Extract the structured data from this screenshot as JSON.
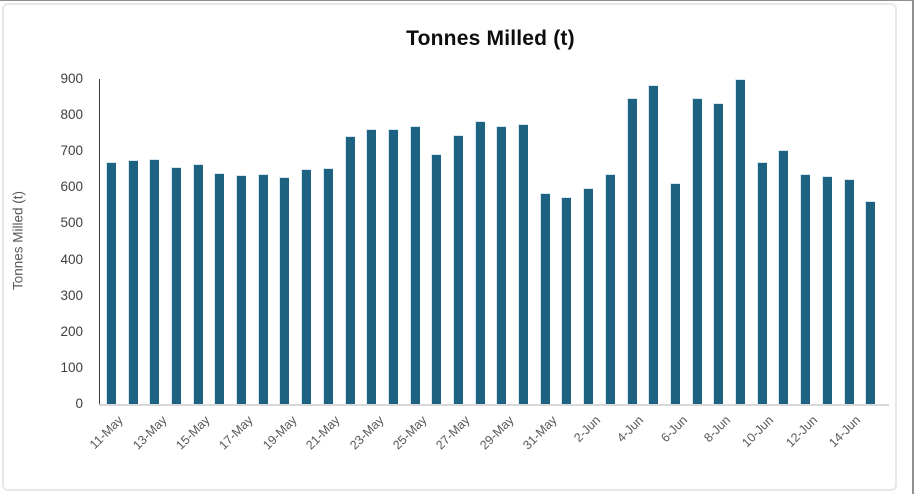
{
  "frame": {
    "background": "#ffffff",
    "inner_border_color": "#e7e7e7",
    "outer_edge_color": "#8f8f8f"
  },
  "chart_data": {
    "type": "bar",
    "title": "Tonnes Milled (t)",
    "ylabel": "Tonnes Milled (t)",
    "xlabel": "",
    "ylim": [
      0,
      900
    ],
    "yticks": [
      0,
      100,
      200,
      300,
      400,
      500,
      600,
      700,
      800,
      900
    ],
    "grid": false,
    "legend": false,
    "bar_color": "#1d6280",
    "axis_tick_color": "#404040",
    "axis_label_color": "#595959",
    "categories": [
      "11-May",
      "12-May",
      "13-May",
      "14-May",
      "15-May",
      "16-May",
      "17-May",
      "18-May",
      "19-May",
      "20-May",
      "21-May",
      "22-May",
      "23-May",
      "24-May",
      "25-May",
      "26-May",
      "27-May",
      "28-May",
      "29-May",
      "30-May",
      "31-May",
      "1-Jun",
      "2-Jun",
      "3-Jun",
      "4-Jun",
      "5-Jun",
      "6-Jun",
      "7-Jun",
      "8-Jun",
      "9-Jun",
      "10-Jun",
      "11-Jun",
      "12-Jun",
      "13-Jun",
      "14-Jun",
      "15-Jun"
    ],
    "values": [
      671,
      676,
      678,
      656,
      664,
      640,
      633,
      638,
      628,
      651,
      654,
      742,
      763,
      763,
      769,
      693,
      745,
      784,
      769,
      776,
      584,
      574,
      598,
      637,
      848,
      883,
      613,
      848,
      834,
      899,
      671,
      704,
      636,
      632,
      623,
      562
    ],
    "x_tick_labels": [
      "11-May",
      "13-May",
      "15-May",
      "17-May",
      "19-May",
      "21-May",
      "23-May",
      "25-May",
      "27-May",
      "29-May",
      "31-May",
      "2-Jun",
      "4-Jun",
      "6-Jun",
      "8-Jun",
      "10-Jun",
      "12-Jun",
      "14-Jun"
    ],
    "x_tick_interval": 2
  }
}
